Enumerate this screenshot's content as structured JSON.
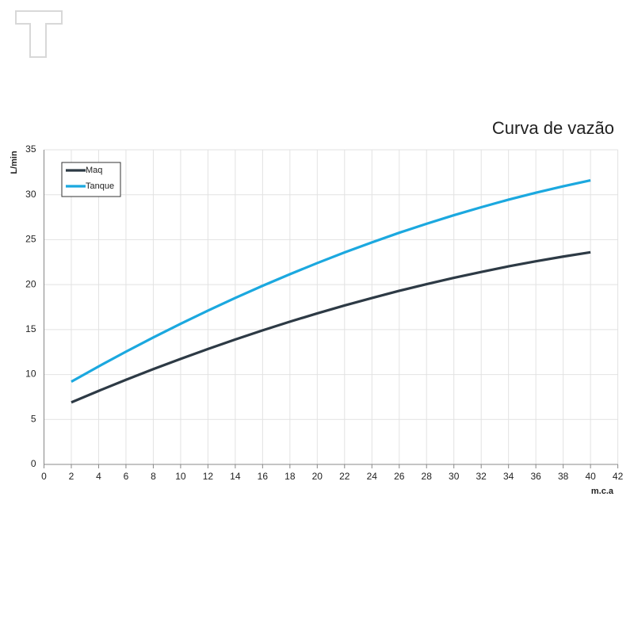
{
  "chart_data": {
    "type": "line",
    "title": "Curva de vazão",
    "x_label": "m.c.a",
    "y_label": "L/min",
    "x": [
      2,
      4,
      6,
      8,
      10,
      12,
      14,
      16,
      18,
      20,
      22,
      24,
      26,
      28,
      30,
      32,
      34,
      36,
      38,
      40
    ],
    "series": [
      {
        "name": "Maq",
        "color": "#2d3a45",
        "values": [
          6.9,
          8.18,
          9.41,
          10.6,
          11.74,
          12.84,
          13.9,
          14.91,
          15.88,
          16.8,
          17.68,
          18.51,
          19.31,
          20.05,
          20.76,
          21.41,
          22.03,
          22.6,
          23.12,
          23.6
        ]
      },
      {
        "name": "Tanque",
        "color": "#1ba8df",
        "values": [
          9.2,
          10.9,
          12.54,
          14.12,
          15.64,
          17.11,
          18.52,
          19.87,
          21.16,
          22.4,
          23.58,
          24.7,
          25.77,
          26.77,
          27.72,
          28.61,
          29.45,
          30.22,
          30.94,
          31.6
        ]
      }
    ],
    "xlim": [
      0,
      42
    ],
    "xticks": [
      0,
      2,
      4,
      6,
      8,
      10,
      12,
      14,
      16,
      18,
      20,
      22,
      24,
      26,
      28,
      30,
      32,
      34,
      36,
      38,
      40,
      42
    ],
    "ylim": [
      0,
      35
    ],
    "yticks": [
      0,
      5,
      10,
      15,
      20,
      25,
      30,
      35
    ],
    "grid": true,
    "legend": "upper left"
  }
}
